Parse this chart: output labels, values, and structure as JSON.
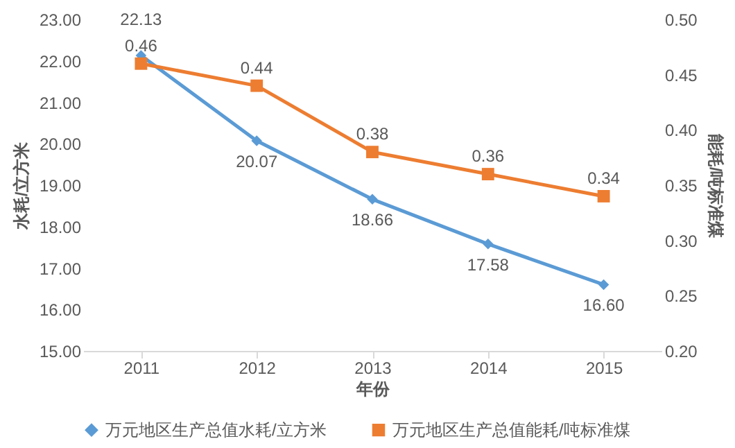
{
  "chart_data": {
    "type": "line",
    "xlabel": "年份",
    "ylabel": "水耗/立方米",
    "y2label": "能耗/吨标准煤",
    "categories": [
      "2011",
      "2012",
      "2013",
      "2014",
      "2015"
    ],
    "ylim": [
      15,
      23
    ],
    "yticks": [
      {
        "value": 15,
        "label": "15.00"
      },
      {
        "value": 16,
        "label": "16.00"
      },
      {
        "value": 17,
        "label": "17.00"
      },
      {
        "value": 18,
        "label": "18.00"
      },
      {
        "value": 19,
        "label": "19.00"
      },
      {
        "value": 20,
        "label": "20.00"
      },
      {
        "value": 21,
        "label": "21.00"
      },
      {
        "value": 22,
        "label": "22.00"
      },
      {
        "value": 23,
        "label": "23.00"
      }
    ],
    "y2lim": [
      0.2,
      0.5
    ],
    "y2ticks": [
      {
        "value": 0.2,
        "label": "0.20"
      },
      {
        "value": 0.25,
        "label": "0.25"
      },
      {
        "value": 0.3,
        "label": "0.30"
      },
      {
        "value": 0.35,
        "label": "0.35"
      },
      {
        "value": 0.4,
        "label": "0.40"
      },
      {
        "value": 0.45,
        "label": "0.45"
      },
      {
        "value": 0.5,
        "label": "0.50"
      }
    ],
    "legend": "bottom",
    "series": [
      {
        "name": "万元地区生产总值水耗/立方米",
        "color": "#5b9bd5",
        "marker": "diamond",
        "values": [
          22.13,
          20.07,
          18.66,
          17.58,
          16.6
        ],
        "value_labels": [
          "22.13",
          "20.07",
          "18.66",
          "17.58",
          "16.60"
        ]
      },
      {
        "name": "万元地区生产总值能耗/吨标准煤",
        "color": "#ed7d31",
        "marker": "square",
        "axis": "y2",
        "values": [
          0.46,
          0.44,
          0.38,
          0.36,
          0.34
        ],
        "value_labels": [
          "0.46",
          "0.44",
          "0.38",
          "0.36",
          "0.34"
        ]
      }
    ]
  }
}
